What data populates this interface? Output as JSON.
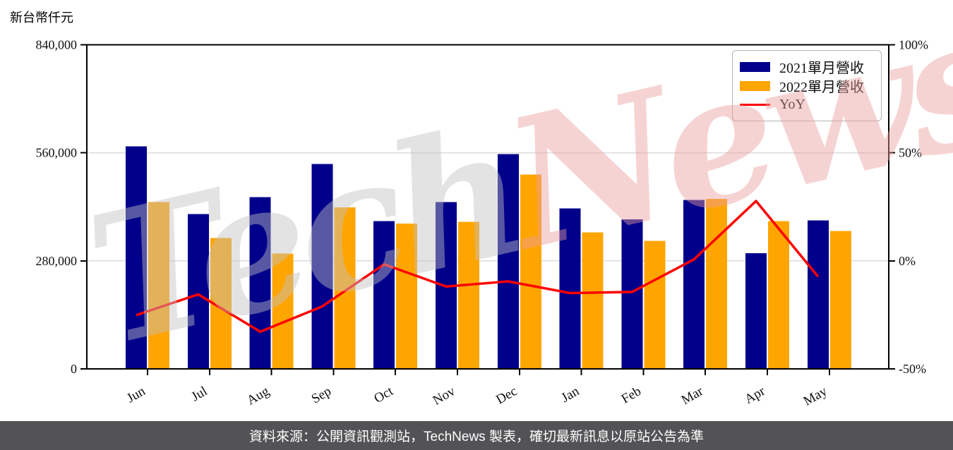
{
  "title": "新台幣仟元",
  "watermark": {
    "part1": "Tech",
    "part2": "News"
  },
  "footer": {
    "text": "資料來源：公開資訊觀測站，TechNews 製表，確切最新訊息以原站公告為準"
  },
  "legend": {
    "items": [
      "2021單月營收",
      "2022單月營收",
      "YoY"
    ]
  },
  "chart_data": {
    "type": "bar",
    "subtype": "grouped bars with overlaid line (dual axis)",
    "title": "",
    "unit_note": "新台幣仟元",
    "categories": [
      "Jun",
      "Jul",
      "Aug",
      "Sep",
      "Oct",
      "Nov",
      "Dec",
      "Jan",
      "Feb",
      "Mar",
      "Apr",
      "May"
    ],
    "series": [
      {
        "name": "2021單月營收",
        "type": "bar",
        "axis": "left",
        "color": "#00008B",
        "values": [
          577000,
          401000,
          445000,
          531000,
          383000,
          432000,
          557000,
          416000,
          388000,
          438000,
          300000,
          385000
        ]
      },
      {
        "name": "2022單月營收",
        "type": "bar",
        "axis": "left",
        "color": "#FFA500",
        "values": [
          432000,
          339000,
          299000,
          419000,
          377000,
          381000,
          504000,
          354000,
          332000,
          441000,
          383000,
          357000
        ]
      },
      {
        "name": "YoY",
        "type": "line",
        "axis": "right",
        "color": "#FF0000",
        "unit": "%",
        "values": [
          -25.1,
          -15.5,
          -32.8,
          -21.1,
          -1.6,
          -11.9,
          -9.5,
          -14.9,
          -14.4,
          0.7,
          27.7,
          -7.3
        ]
      }
    ],
    "left_axis": {
      "title": "新台幣仟元",
      "range": [
        0,
        840000
      ],
      "tick_values": [
        0,
        280000,
        560000,
        840000
      ],
      "tick_labels": [
        "0",
        "280,000",
        "560,000",
        "840,000"
      ]
    },
    "right_axis": {
      "range": [
        -50,
        100
      ],
      "tick_values": [
        -50,
        0,
        50,
        100
      ],
      "tick_labels": [
        "-50%",
        "0%",
        "50%",
        "100%"
      ]
    },
    "grid": {
      "horizontal": true,
      "vertical": false,
      "color": "#DCDCDC"
    },
    "legend_position": "upper right",
    "colors": {
      "bar_2021": "#00008B",
      "bar_2022": "#FFA500",
      "yoy_line": "#FF0000",
      "spine": "#000000",
      "footer_bg": "#535356",
      "watermark_gray": "#C1C1C1",
      "watermark_pink": "#EC9E9E"
    }
  }
}
